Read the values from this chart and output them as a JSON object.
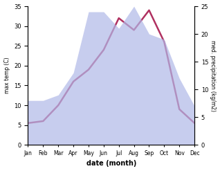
{
  "months": [
    "Jan",
    "Feb",
    "Mar",
    "Apr",
    "May",
    "Jun",
    "Jul",
    "Aug",
    "Sep",
    "Oct",
    "Nov",
    "Dec"
  ],
  "temperature": [
    5.5,
    6.0,
    10.0,
    16.0,
    19.0,
    24.0,
    32.0,
    29.0,
    34.0,
    26.0,
    9.0,
    5.5
  ],
  "precipitation": [
    8.0,
    8.0,
    9.0,
    13.0,
    24.0,
    24.0,
    21.0,
    25.0,
    20.0,
    19.0,
    12.0,
    7.0
  ],
  "temp_color": "#b03060",
  "precip_color": "#b0b8e8",
  "temp_ylim": [
    0,
    35
  ],
  "precip_ylim": [
    0,
    25
  ],
  "temp_yticks": [
    0,
    5,
    10,
    15,
    20,
    25,
    30,
    35
  ],
  "precip_yticks": [
    0,
    5,
    10,
    15,
    20,
    25
  ],
  "xlabel": "date (month)",
  "ylabel_left": "max temp (C)",
  "ylabel_right": "med. precipitation (kg/m2)",
  "bg_color": "#ffffff"
}
